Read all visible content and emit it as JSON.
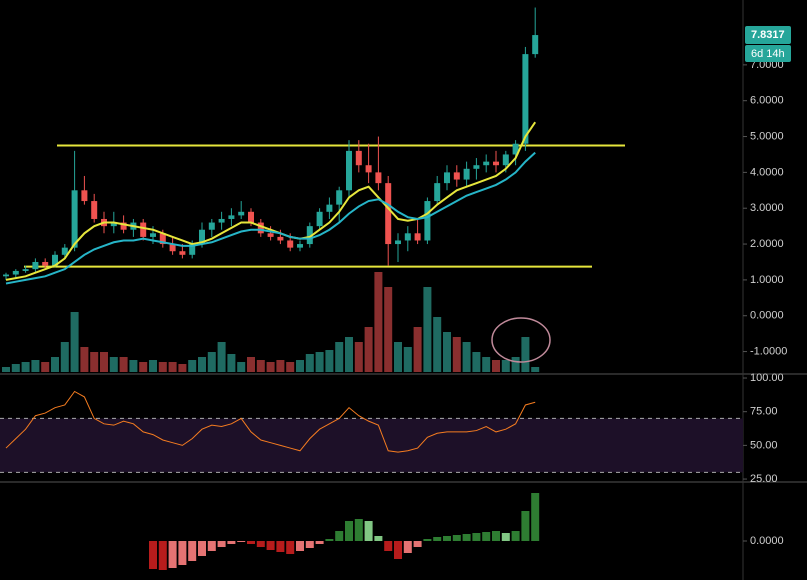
{
  "chart_data": [
    {
      "type": "candlestick",
      "open": [
        1.1,
        1.15,
        1.25,
        1.3,
        1.5,
        1.4,
        1.7,
        1.9,
        3.5,
        3.2,
        2.7,
        2.5,
        2.6,
        2.4,
        2.6,
        2.2,
        2.3,
        2.0,
        1.8,
        1.7,
        2.0,
        2.4,
        2.6,
        2.7,
        2.8,
        2.9,
        2.6,
        2.3,
        2.2,
        2.1,
        1.9,
        2.0,
        2.5,
        2.9,
        3.1,
        3.5,
        4.6,
        4.2,
        4.0,
        3.7,
        2.0,
        2.1,
        2.3,
        2.1,
        3.2,
        3.7,
        4.0,
        3.8,
        4.1,
        4.2,
        4.3,
        4.2,
        4.5,
        4.8,
        7.3
      ],
      "high": [
        1.2,
        1.3,
        1.4,
        1.6,
        1.6,
        1.8,
        2.0,
        4.6,
        3.9,
        3.4,
        2.9,
        2.9,
        2.8,
        2.7,
        2.7,
        2.5,
        2.4,
        2.2,
        2.0,
        2.1,
        2.6,
        2.7,
        2.9,
        3.0,
        3.2,
        3.0,
        2.7,
        2.5,
        2.4,
        2.3,
        2.1,
        2.6,
        3.0,
        3.3,
        3.6,
        4.9,
        4.9,
        4.8,
        5.0,
        3.9,
        2.3,
        2.5,
        2.7,
        3.3,
        3.9,
        4.2,
        4.2,
        4.3,
        4.4,
        4.5,
        4.6,
        4.6,
        4.9,
        7.5,
        8.6
      ],
      "low": [
        1.0,
        1.05,
        1.2,
        1.2,
        1.3,
        1.35,
        1.6,
        1.8,
        3.1,
        2.6,
        2.3,
        2.3,
        2.3,
        2.2,
        2.1,
        2.0,
        1.9,
        1.7,
        1.6,
        1.6,
        1.9,
        2.2,
        2.4,
        2.5,
        2.7,
        2.5,
        2.2,
        2.1,
        2.0,
        1.8,
        1.8,
        1.9,
        2.4,
        2.7,
        2.6,
        3.3,
        4.0,
        3.7,
        3.5,
        1.4,
        1.5,
        1.8,
        2.0,
        2.0,
        3.1,
        3.5,
        3.6,
        3.6,
        3.8,
        4.0,
        4.0,
        4.0,
        4.2,
        4.6,
        7.2
      ],
      "close": [
        1.15,
        1.25,
        1.3,
        1.5,
        1.4,
        1.7,
        1.9,
        3.5,
        3.2,
        2.7,
        2.5,
        2.6,
        2.4,
        2.6,
        2.2,
        2.3,
        2.0,
        1.8,
        1.7,
        2.0,
        2.4,
        2.6,
        2.7,
        2.8,
        2.9,
        2.6,
        2.3,
        2.2,
        2.1,
        1.9,
        2.0,
        2.5,
        2.9,
        3.1,
        3.5,
        4.6,
        4.2,
        4.0,
        3.7,
        2.0,
        2.1,
        2.3,
        2.1,
        3.2,
        3.7,
        4.0,
        3.8,
        4.1,
        4.2,
        4.3,
        4.2,
        4.5,
        4.8,
        7.3,
        7.8317
      ],
      "up_color": "#26a69a",
      "down_color": "#ef5350",
      "overlays": [
        {
          "color": "#e6e63c",
          "values": [
            1.0,
            1.05,
            1.1,
            1.2,
            1.3,
            1.4,
            1.6,
            2.0,
            2.3,
            2.5,
            2.6,
            2.6,
            2.55,
            2.5,
            2.45,
            2.4,
            2.3,
            2.2,
            2.1,
            2.0,
            2.05,
            2.15,
            2.3,
            2.45,
            2.6,
            2.6,
            2.5,
            2.4,
            2.3,
            2.2,
            2.15,
            2.2,
            2.4,
            2.6,
            2.9,
            3.3,
            3.5,
            3.6,
            3.3,
            3.0,
            2.7,
            2.65,
            2.7,
            2.85,
            3.1,
            3.3,
            3.5,
            3.6,
            3.7,
            3.8,
            3.9,
            4.1,
            4.4,
            5.0,
            5.4
          ]
        },
        {
          "color": "#26b5c8",
          "values": [
            0.9,
            0.95,
            1.0,
            1.05,
            1.1,
            1.2,
            1.3,
            1.5,
            1.7,
            1.85,
            1.95,
            2.05,
            2.1,
            2.1,
            2.15,
            2.1,
            2.05,
            2.0,
            1.95,
            1.95,
            2.0,
            2.05,
            2.15,
            2.25,
            2.35,
            2.4,
            2.4,
            2.35,
            2.3,
            2.2,
            2.15,
            2.15,
            2.25,
            2.4,
            2.6,
            2.85,
            3.05,
            3.2,
            3.25,
            3.1,
            2.9,
            2.75,
            2.7,
            2.75,
            2.9,
            3.05,
            3.2,
            3.35,
            3.45,
            3.55,
            3.65,
            3.8,
            4.0,
            4.3,
            4.55
          ]
        }
      ],
      "levels": {
        "color": "#e6e63c",
        "values": [
          4.75,
          1.37
        ]
      },
      "ylim": [
        -1.57,
        8.81
      ],
      "yticks": [
        {
          "value": -1,
          "label": "-1.0000"
        },
        {
          "value": 0,
          "label": "0.0000"
        },
        {
          "value": 1,
          "label": "1.0000"
        },
        {
          "value": 2,
          "label": "2.0000"
        },
        {
          "value": 3,
          "label": "3.0000"
        },
        {
          "value": 4,
          "label": "4.0000"
        },
        {
          "value": 5,
          "label": "5.0000"
        },
        {
          "value": 6,
          "label": "6.0000"
        },
        {
          "value": 7,
          "label": "7.0000"
        }
      ],
      "price_label": "7.8317",
      "countdown": "6d 14h",
      "label_color": "#26a69a"
    },
    {
      "type": "volume",
      "values": [
        5,
        8,
        10,
        12,
        10,
        15,
        30,
        60,
        25,
        20,
        20,
        15,
        15,
        12,
        10,
        12,
        10,
        10,
        8,
        12,
        15,
        20,
        30,
        18,
        10,
        15,
        12,
        10,
        12,
        10,
        12,
        18,
        20,
        22,
        30,
        35,
        30,
        45,
        100,
        85,
        30,
        25,
        45,
        85,
        55,
        40,
        35,
        30,
        20,
        15,
        12,
        12,
        15,
        35,
        5
      ],
      "up_color": "#1f6b62",
      "down_color": "#8a2f2f",
      "ylim": [
        0,
        100
      ]
    },
    {
      "type": "line",
      "values": [
        48,
        55,
        62,
        72,
        74,
        78,
        80,
        90,
        86,
        70,
        66,
        65,
        68,
        66,
        60,
        58,
        54,
        52,
        50,
        55,
        62,
        65,
        64,
        66,
        70,
        60,
        54,
        52,
        50,
        48,
        46,
        55,
        62,
        66,
        70,
        78,
        72,
        68,
        65,
        46,
        45,
        46,
        48,
        56,
        59,
        60,
        60,
        60,
        61,
        64,
        60,
        62,
        66,
        80,
        82
      ],
      "color": "#f57c20",
      "band": [
        30,
        70
      ],
      "band_color": "#1d1028",
      "ylim": [
        24.3,
        101.5
      ],
      "yticks": [
        {
          "value": 100,
          "label": "100.00"
        },
        {
          "value": 75,
          "label": "75.00"
        },
        {
          "value": 50,
          "label": "50.00"
        },
        {
          "value": 25,
          "label": "25.00"
        }
      ]
    },
    {
      "type": "histogram",
      "values": [
        null,
        null,
        null,
        null,
        null,
        null,
        null,
        null,
        null,
        null,
        null,
        null,
        null,
        null,
        null,
        -0.28,
        -0.29,
        -0.27,
        -0.24,
        -0.2,
        -0.15,
        -0.1,
        -0.06,
        -0.03,
        -0.01,
        -0.03,
        -0.06,
        -0.09,
        -0.11,
        -0.13,
        -0.1,
        -0.07,
        -0.03,
        0.02,
        0.1,
        0.2,
        0.22,
        0.2,
        0.05,
        -0.1,
        -0.18,
        -0.12,
        -0.06,
        0.02,
        0.04,
        0.05,
        0.06,
        0.07,
        0.08,
        0.09,
        0.1,
        0.08,
        0.1,
        0.3,
        0.48
      ],
      "colors": {
        "up_rising": "#2e7d32",
        "up_falling": "#81c784",
        "down_falling": "#b71c1c",
        "down_rising": "#e57373"
      },
      "ylim": [
        -0.39,
        0.57
      ],
      "yticks": [
        {
          "value": 0,
          "label": "0.0000"
        }
      ]
    }
  ]
}
